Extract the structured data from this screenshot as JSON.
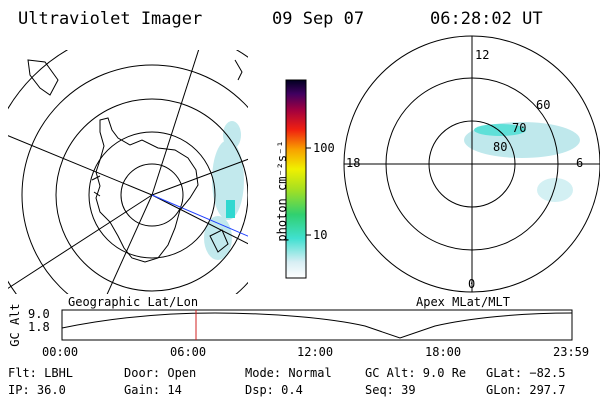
{
  "header": {
    "title": "Ultraviolet Imager",
    "date": "09 Sep 07",
    "time": "06:28:02 UT"
  },
  "colorbar": {
    "label": "photon cm⁻²s⁻¹",
    "ticks": [
      "100",
      "10"
    ]
  },
  "geo_map": {
    "caption": "Geographic Lat/Lon"
  },
  "apex_map": {
    "caption": "Apex MLat/MLT",
    "mlt_labels": {
      "top": "12",
      "left": "18",
      "right": "6",
      "bottom": "0"
    },
    "lat_labels": [
      "60",
      "70",
      "80"
    ]
  },
  "altitude_plot": {
    "ylabel": "GC Alt",
    "yticks": [
      "9.0",
      "1.8"
    ],
    "xticks": [
      "00:00",
      "06:00",
      "12:00",
      "18:00",
      "23:59"
    ],
    "current_time": "06:28",
    "colors": {
      "marker": "#d02020"
    }
  },
  "info": {
    "filter": "Flt: LBHL",
    "ip": "IP: 36.0",
    "door": "Door: Open",
    "gain": "Gain: 14",
    "mode": "Mode: Normal",
    "dsp": "Dsp:    0.4",
    "gc_alt": "GC Alt: 9.0 Re",
    "seq": "Seq: 39",
    "glat": "GLat: −82.5",
    "glon": "GLon: 297.7"
  }
}
